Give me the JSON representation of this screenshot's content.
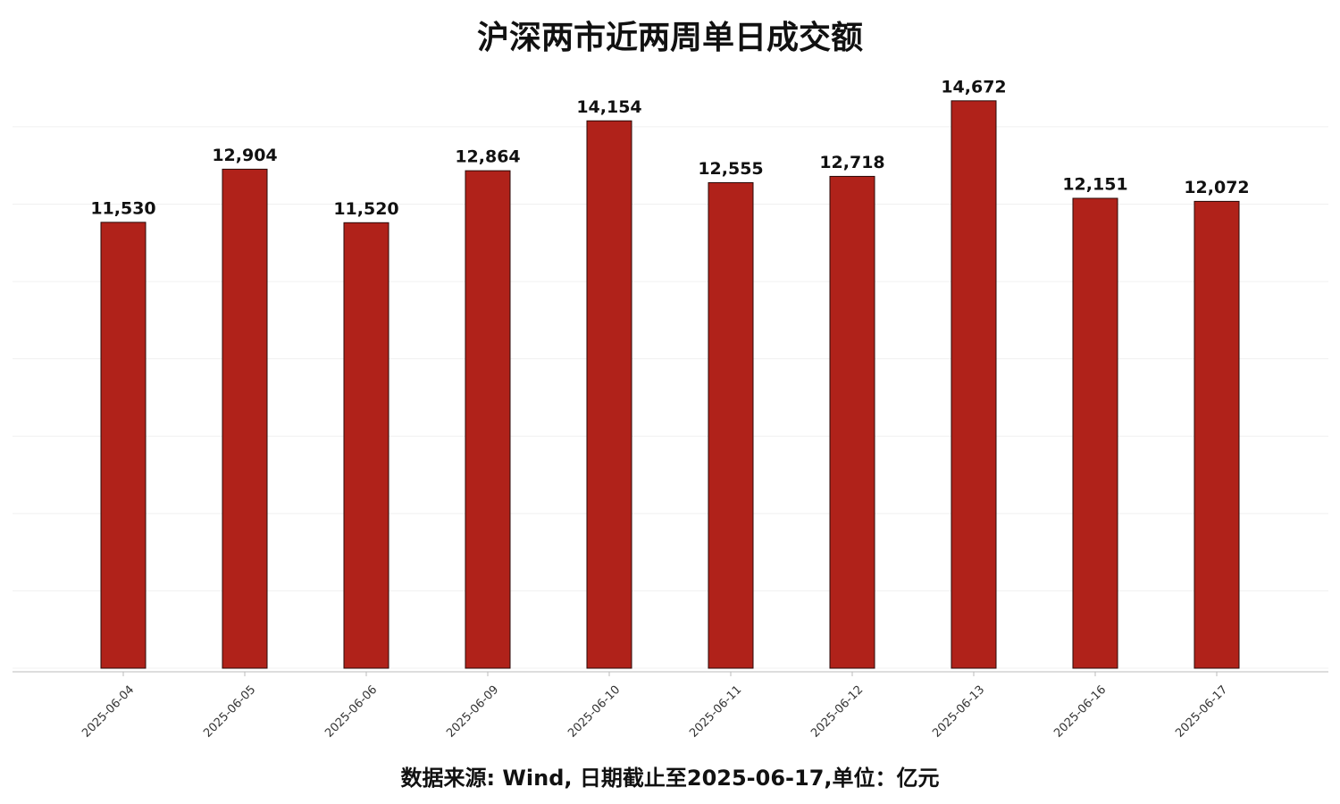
{
  "chart_data": {
    "type": "bar",
    "title": "沪深两市近两周单日成交额",
    "footnote": "数据来源: Wind, 日期截止至2025-06-17,单位：亿元",
    "categories": [
      "2025-06-04",
      "2025-06-05",
      "2025-06-06",
      "2025-06-09",
      "2025-06-10",
      "2025-06-11",
      "2025-06-12",
      "2025-06-13",
      "2025-06-16",
      "2025-06-17"
    ],
    "values": [
      11530,
      12904,
      11520,
      12864,
      14154,
      12555,
      12718,
      14672,
      12151,
      12072
    ],
    "value_labels": [
      "11,530",
      "12,904",
      "11,520",
      "12,864",
      "14,154",
      "12,555",
      "12,718",
      "14,672",
      "12,151",
      "12,072"
    ],
    "color": "#b0221a",
    "ylim": [
      0,
      15500
    ],
    "yticks": [
      0,
      2000,
      4000,
      6000,
      8000,
      10000,
      12000,
      14000
    ],
    "grid": true
  }
}
